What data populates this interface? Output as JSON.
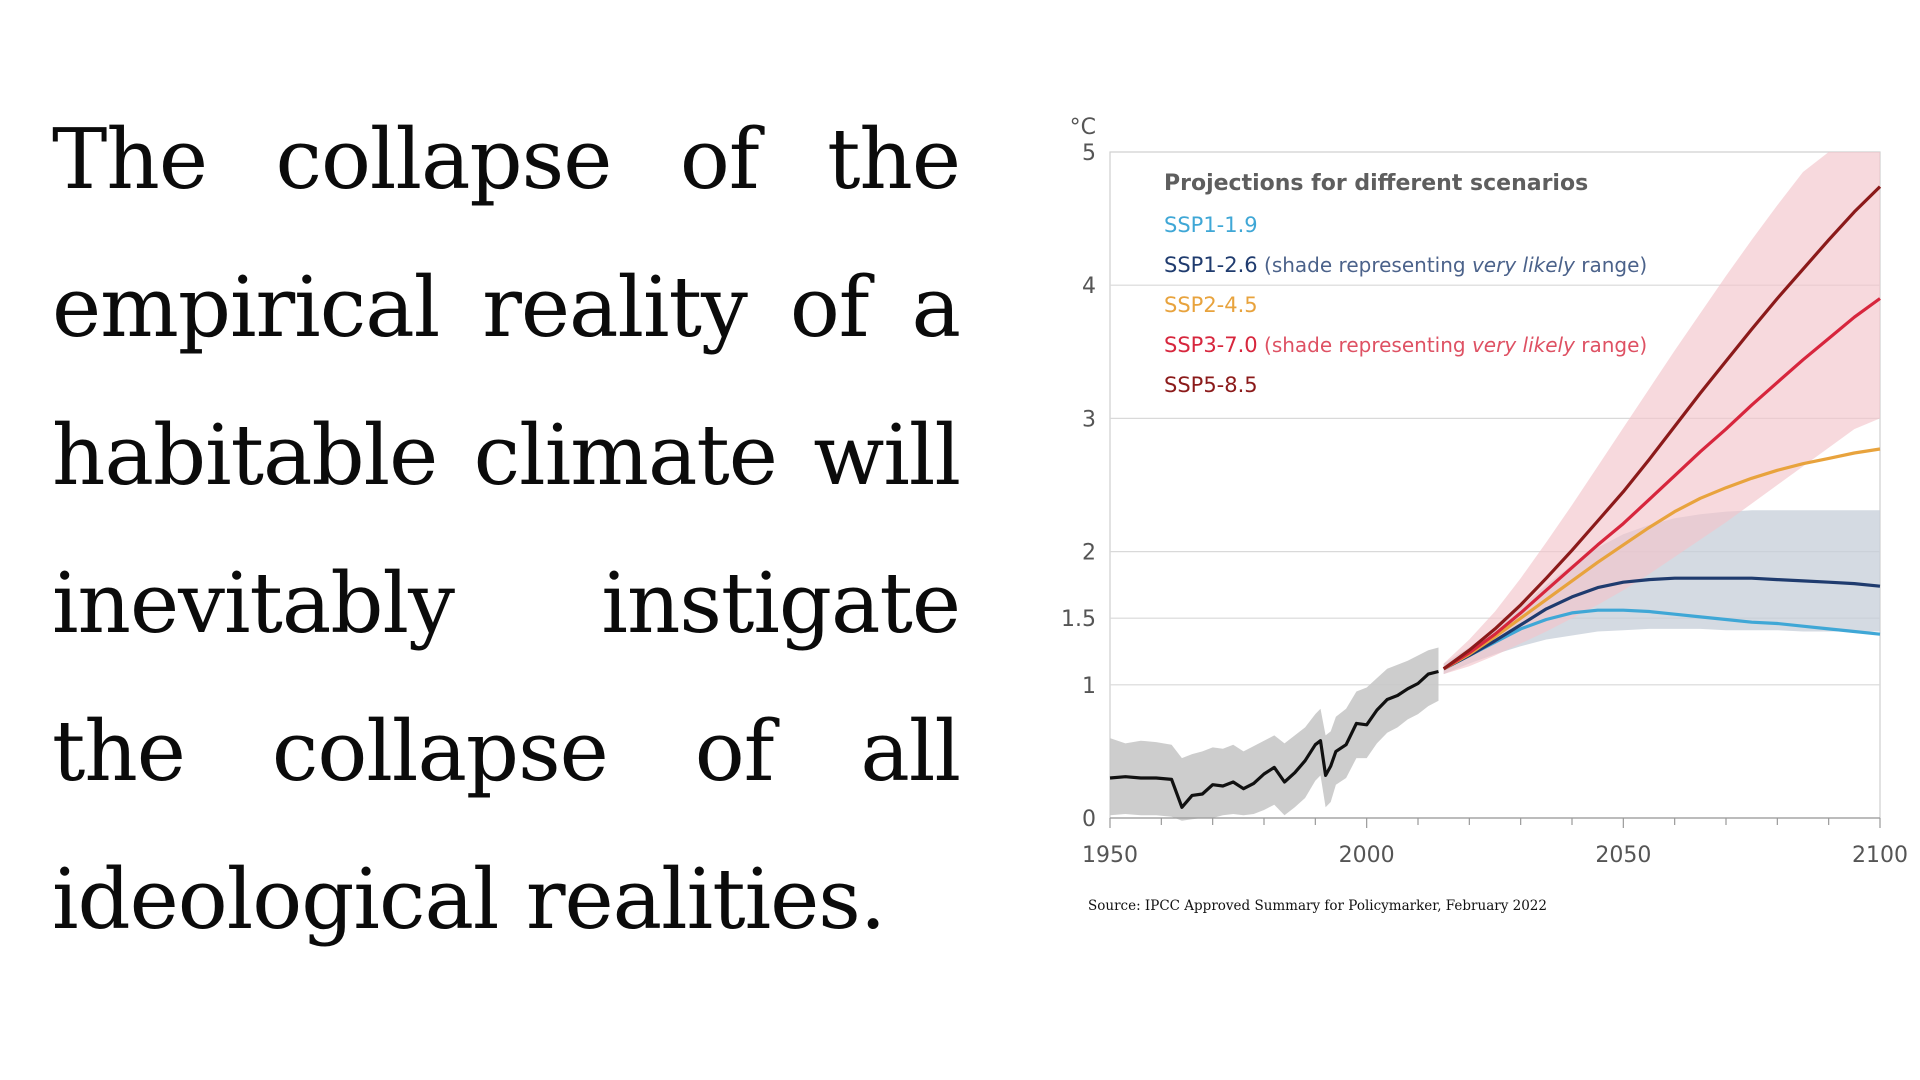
{
  "quote": "The collapse of the empirical reality of a habitable climate will inevitably instigate the collapse of all ideological realities.",
  "source": "Source:  IPCC Approved Summary for Policymarker, February 2022",
  "chart_data": {
    "type": "line",
    "unit_label": "°C",
    "xlim": [
      1950,
      2100
    ],
    "ylim": [
      0,
      5
    ],
    "x_ticks": [
      1950,
      2000,
      2050,
      2100
    ],
    "y_ticks": [
      0,
      1,
      1.5,
      2,
      3,
      4,
      5
    ],
    "y_tick_labels": [
      "0",
      "1",
      "1.5",
      "2",
      "3",
      "4",
      "5"
    ],
    "grid": "horizontal",
    "legend_title": "Projections for different scenarios",
    "legend_items": [
      {
        "label": "SSP1-1.9",
        "note": "",
        "color": "#3fa7d6"
      },
      {
        "label": "SSP1-2.6",
        "note_pre": "(shade representing ",
        "note_italic": "very likely",
        "note_post": " range)",
        "color": "#1f3b6e"
      },
      {
        "label": "SSP2-4.5",
        "note": "",
        "color": "#e8a33d"
      },
      {
        "label": "SSP3-7.0",
        "note_pre": "(shade representing ",
        "note_italic": "very likely",
        "note_post": " range)",
        "color": "#d7263d"
      },
      {
        "label": "SSP5-8.5",
        "note": "",
        "color": "#8b1a1a"
      }
    ],
    "colors": {
      "historical": "#111111",
      "historical_band": "#c8c8c8",
      "ssp126_band": "#c6cdd8",
      "ssp370_band": "#f2c4cb",
      "grid": "#d9d9d9",
      "frame": "#cfcfcf"
    },
    "historical": {
      "x": [
        1950,
        1953,
        1956,
        1959,
        1962,
        1964,
        1966,
        1968,
        1970,
        1972,
        1974,
        1976,
        1978,
        1980,
        1982,
        1984,
        1986,
        1988,
        1990,
        1991,
        1992,
        1993,
        1994,
        1996,
        1998,
        2000,
        2002,
        2004,
        2006,
        2008,
        2010,
        2012,
        2014
      ],
      "y": [
        0.3,
        0.31,
        0.3,
        0.3,
        0.29,
        0.08,
        0.17,
        0.18,
        0.25,
        0.24,
        0.27,
        0.22,
        0.26,
        0.33,
        0.38,
        0.27,
        0.34,
        0.43,
        0.55,
        0.58,
        0.32,
        0.39,
        0.5,
        0.55,
        0.71,
        0.7,
        0.81,
        0.89,
        0.92,
        0.97,
        1.01,
        1.08,
        1.1
      ],
      "band_upper": [
        0.6,
        0.56,
        0.58,
        0.57,
        0.55,
        0.45,
        0.48,
        0.5,
        0.53,
        0.52,
        0.55,
        0.5,
        0.54,
        0.58,
        0.62,
        0.56,
        0.62,
        0.68,
        0.78,
        0.82,
        0.62,
        0.65,
        0.76,
        0.82,
        0.95,
        0.98,
        1.05,
        1.12,
        1.15,
        1.18,
        1.22,
        1.26,
        1.28
      ],
      "band_lower": [
        0.02,
        0.03,
        0.02,
        0.02,
        0.01,
        -0.02,
        -0.01,
        0.0,
        0.0,
        0.02,
        0.03,
        0.02,
        0.03,
        0.06,
        0.1,
        0.02,
        0.08,
        0.15,
        0.28,
        0.32,
        0.08,
        0.12,
        0.25,
        0.3,
        0.45,
        0.45,
        0.56,
        0.64,
        0.68,
        0.74,
        0.78,
        0.84,
        0.88
      ]
    },
    "projection_x": [
      2015,
      2020,
      2025,
      2030,
      2035,
      2040,
      2045,
      2050,
      2055,
      2060,
      2065,
      2070,
      2075,
      2080,
      2085,
      2090,
      2095,
      2100
    ],
    "series": [
      {
        "name": "SSP1-1.9",
        "color": "#3fa7d6",
        "values": [
          1.12,
          1.22,
          1.32,
          1.42,
          1.49,
          1.54,
          1.56,
          1.56,
          1.55,
          1.53,
          1.51,
          1.49,
          1.47,
          1.46,
          1.44,
          1.42,
          1.4,
          1.38
        ]
      },
      {
        "name": "SSP1-2.6",
        "color": "#1f3b6e",
        "values": [
          1.12,
          1.22,
          1.33,
          1.45,
          1.57,
          1.66,
          1.73,
          1.77,
          1.79,
          1.8,
          1.8,
          1.8,
          1.8,
          1.79,
          1.78,
          1.77,
          1.76,
          1.74
        ]
      },
      {
        "name": "SSP2-4.5",
        "color": "#e8a33d",
        "values": [
          1.12,
          1.23,
          1.36,
          1.5,
          1.64,
          1.78,
          1.92,
          2.05,
          2.18,
          2.3,
          2.4,
          2.48,
          2.55,
          2.61,
          2.66,
          2.7,
          2.74,
          2.77
        ]
      },
      {
        "name": "SSP3-7.0",
        "color": "#d7263d",
        "values": [
          1.12,
          1.24,
          1.38,
          1.54,
          1.71,
          1.88,
          2.05,
          2.21,
          2.39,
          2.57,
          2.75,
          2.92,
          3.1,
          3.27,
          3.44,
          3.6,
          3.76,
          3.9
        ]
      },
      {
        "name": "SSP5-8.5",
        "color": "#8b1a1a",
        "values": [
          1.12,
          1.26,
          1.42,
          1.6,
          1.8,
          2.01,
          2.23,
          2.45,
          2.69,
          2.94,
          3.19,
          3.43,
          3.67,
          3.9,
          4.12,
          4.34,
          4.55,
          4.74
        ]
      }
    ],
    "ssp126_band": {
      "upper": [
        1.16,
        1.28,
        1.42,
        1.58,
        1.75,
        1.9,
        2.03,
        2.13,
        2.2,
        2.25,
        2.28,
        2.3,
        2.31,
        2.31,
        2.31,
        2.31,
        2.31,
        2.31
      ],
      "lower": [
        1.08,
        1.16,
        1.23,
        1.29,
        1.34,
        1.37,
        1.4,
        1.41,
        1.42,
        1.42,
        1.42,
        1.41,
        1.41,
        1.41,
        1.4,
        1.4,
        1.4,
        1.4
      ]
    },
    "ssp370_band": {
      "upper": [
        1.16,
        1.34,
        1.55,
        1.8,
        2.07,
        2.35,
        2.64,
        2.93,
        3.22,
        3.51,
        3.79,
        4.07,
        4.34,
        4.6,
        4.85,
        5.0,
        5.0,
        5.0
      ],
      "lower": [
        1.08,
        1.14,
        1.22,
        1.31,
        1.4,
        1.5,
        1.6,
        1.71,
        1.83,
        1.96,
        2.09,
        2.22,
        2.36,
        2.5,
        2.64,
        2.78,
        2.92,
        3.0
      ]
    }
  }
}
